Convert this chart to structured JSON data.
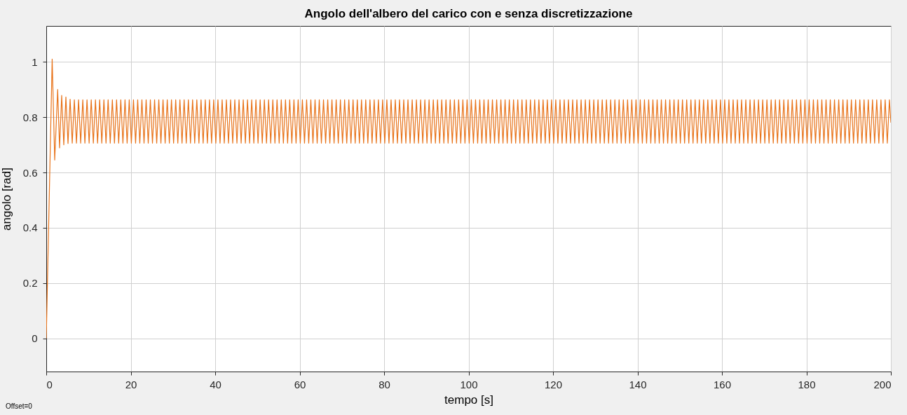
{
  "chart_data": {
    "type": "line",
    "title": "Angolo dell'albero del carico con e senza discretizzazione",
    "xlabel": "tempo [s]",
    "ylabel": "angolo [rad]",
    "annotations": [
      "Offset=0"
    ],
    "xlim": [
      0,
      200
    ],
    "xticks": [
      0,
      20,
      40,
      60,
      80,
      100,
      120,
      140,
      160,
      180,
      200
    ],
    "ylim": [
      -0.12,
      1.13
    ],
    "yticks": [
      0,
      0.2,
      0.4,
      0.6,
      0.8,
      1
    ],
    "grid": true,
    "line_style": "solid",
    "marker": "none",
    "series": [
      {
        "color": "#e8731a",
        "x": [
          0,
          1.4,
          2.0,
          2.7,
          3.15,
          3.65,
          4.15,
          4.65,
          5.15,
          5.65,
          6.15,
          6.65,
          7.15,
          7.65,
          8.15,
          8.65,
          9.15,
          9.65,
          10.15,
          10.65,
          11.15,
          11.65,
          12.15,
          12.65,
          13.15,
          13.65,
          14.15,
          14.65,
          15.15,
          15.65,
          16.15,
          16.65,
          17.15,
          17.65,
          18.15,
          18.65,
          19.15,
          19.65,
          20.15,
          20.65,
          21.15,
          21.65,
          22.15,
          22.65,
          23.15,
          23.65,
          24.15,
          24.65,
          25.15,
          25.65,
          26.15,
          26.65,
          27.15,
          27.65,
          28.15,
          28.65,
          29.15,
          29.65,
          30.15,
          30.65,
          31.15,
          31.65,
          32.15,
          32.65,
          33.15,
          33.65,
          34.15,
          34.65,
          35.15,
          35.65,
          36.15,
          36.65,
          37.15,
          37.65,
          38.15,
          38.65,
          39.15,
          39.65,
          40.15,
          40.65,
          41.15,
          41.65,
          42.15,
          42.65,
          43.15,
          43.65,
          44.15,
          44.65,
          45.15,
          45.65,
          46.15,
          46.65,
          47.15,
          47.65,
          48.15,
          48.65,
          49.15,
          49.65,
          50.15,
          50.65,
          51.15,
          51.65,
          52.15,
          52.65,
          53.15,
          53.65,
          54.15,
          54.65,
          55.15,
          55.65,
          56.15,
          56.65,
          57.15,
          57.65,
          58.15,
          58.65,
          59.15,
          59.65,
          60.15,
          60.65,
          61.15,
          61.65,
          62.15,
          62.65,
          63.15,
          63.65,
          64.15,
          64.65,
          65.15,
          65.65,
          66.15,
          66.65,
          67.15,
          67.65,
          68.15,
          68.65,
          69.15,
          69.65,
          70.15,
          70.65,
          71.15,
          71.65,
          72.15,
          72.65,
          73.15,
          73.65,
          74.15,
          74.65,
          75.15,
          75.65,
          76.15,
          76.65,
          77.15,
          77.65,
          78.15,
          78.65,
          79.15,
          79.65,
          80.15,
          80.65,
          81.15,
          81.65,
          82.15,
          82.65,
          83.15,
          83.65,
          84.15,
          84.65,
          85.15,
          85.65,
          86.15,
          86.65,
          87.15,
          87.65,
          88.15,
          88.65,
          89.15,
          89.65,
          90.15,
          90.65,
          91.15,
          91.65,
          92.15,
          92.65,
          93.15,
          93.65,
          94.15,
          94.65,
          95.15,
          95.65,
          96.15,
          96.65,
          97.15,
          97.65,
          98.15,
          98.65,
          99.15,
          99.65,
          100.15,
          100.65,
          101.15,
          101.65,
          102.15,
          102.65,
          103.15,
          103.65,
          104.15,
          104.65,
          105.15,
          105.65,
          106.15,
          106.65,
          107.15,
          107.65,
          108.15,
          108.65,
          109.15,
          109.65,
          110.15,
          110.65,
          111.15,
          111.65,
          112.15,
          112.65,
          113.15,
          113.65,
          114.15,
          114.65,
          115.15,
          115.65,
          116.15,
          116.65,
          117.15,
          117.65,
          118.15,
          118.65,
          119.15,
          119.65,
          120.15,
          120.65,
          121.15,
          121.65,
          122.15,
          122.65,
          123.15,
          123.65,
          124.15,
          124.65,
          125.15,
          125.65,
          126.15,
          126.65,
          127.15,
          127.65,
          128.15,
          128.65,
          129.15,
          129.65,
          130.15,
          130.65,
          131.15,
          131.65,
          132.15,
          132.65,
          133.15,
          133.65,
          134.15,
          134.65,
          135.15,
          135.65,
          136.15,
          136.65,
          137.15,
          137.65,
          138.15,
          138.65,
          139.15,
          139.65,
          140.15,
          140.65,
          141.15,
          141.65,
          142.15,
          142.65,
          143.15,
          143.65,
          144.15,
          144.65,
          145.15,
          145.65,
          146.15,
          146.65,
          147.15,
          147.65,
          148.15,
          148.65,
          149.15,
          149.65,
          150.15,
          150.65,
          151.15,
          151.65,
          152.15,
          152.65,
          153.15,
          153.65,
          154.15,
          154.65,
          155.15,
          155.65,
          156.15,
          156.65,
          157.15,
          157.65,
          158.15,
          158.65,
          159.15,
          159.65,
          160.15,
          160.65,
          161.15,
          161.65,
          162.15,
          162.65,
          163.15,
          163.65,
          164.15,
          164.65,
          165.15,
          165.65,
          166.15,
          166.65,
          167.15,
          167.65,
          168.15,
          168.65,
          169.15,
          169.65,
          170.15,
          170.65,
          171.15,
          171.65,
          172.15,
          172.65,
          173.15,
          173.65,
          174.15,
          174.65,
          175.15,
          175.65,
          176.15,
          176.65,
          177.15,
          177.65,
          178.15,
          178.65,
          179.15,
          179.65,
          180.15,
          180.65,
          181.15,
          181.65,
          182.15,
          182.65,
          183.15,
          183.65,
          184.15,
          184.65,
          185.15,
          185.65,
          186.15,
          186.65,
          187.15,
          187.65,
          188.15,
          188.65,
          189.15,
          189.65,
          190.15,
          190.65,
          191.15,
          191.65,
          192.15,
          192.65,
          193.15,
          193.65,
          194.15,
          194.65,
          195.15,
          195.65,
          196.15,
          196.65,
          197.15,
          197.65,
          198.15,
          198.65,
          199.15,
          199.65,
          200
        ],
        "values": [
          0,
          1.01,
          0.645,
          0.9,
          0.689,
          0.879,
          0.7,
          0.873,
          0.705,
          0.865,
          0.706,
          0.863,
          0.706,
          0.863,
          0.706,
          0.863,
          0.706,
          0.863,
          0.706,
          0.863,
          0.706,
          0.863,
          0.706,
          0.863,
          0.706,
          0.863,
          0.706,
          0.863,
          0.706,
          0.863,
          0.706,
          0.863,
          0.706,
          0.863,
          0.706,
          0.863,
          0.706,
          0.863,
          0.706,
          0.863,
          0.706,
          0.863,
          0.706,
          0.863,
          0.706,
          0.863,
          0.706,
          0.863,
          0.706,
          0.863,
          0.706,
          0.863,
          0.706,
          0.863,
          0.706,
          0.863,
          0.706,
          0.863,
          0.706,
          0.863,
          0.706,
          0.863,
          0.706,
          0.863,
          0.706,
          0.863,
          0.706,
          0.863,
          0.706,
          0.863,
          0.706,
          0.863,
          0.706,
          0.863,
          0.706,
          0.863,
          0.706,
          0.863,
          0.706,
          0.863,
          0.706,
          0.863,
          0.706,
          0.863,
          0.706,
          0.863,
          0.706,
          0.863,
          0.706,
          0.863,
          0.706,
          0.863,
          0.706,
          0.863,
          0.706,
          0.863,
          0.706,
          0.863,
          0.706,
          0.863,
          0.706,
          0.863,
          0.706,
          0.863,
          0.706,
          0.863,
          0.706,
          0.863,
          0.706,
          0.863,
          0.706,
          0.863,
          0.706,
          0.863,
          0.706,
          0.863,
          0.706,
          0.863,
          0.706,
          0.863,
          0.706,
          0.863,
          0.706,
          0.863,
          0.706,
          0.863,
          0.706,
          0.863,
          0.706,
          0.863,
          0.706,
          0.863,
          0.706,
          0.863,
          0.706,
          0.863,
          0.706,
          0.863,
          0.706,
          0.863,
          0.706,
          0.863,
          0.706,
          0.863,
          0.706,
          0.863,
          0.706,
          0.863,
          0.706,
          0.863,
          0.706,
          0.863,
          0.706,
          0.863,
          0.706,
          0.863,
          0.706,
          0.863,
          0.706,
          0.863,
          0.706,
          0.863,
          0.706,
          0.863,
          0.706,
          0.863,
          0.706,
          0.863,
          0.706,
          0.863,
          0.706,
          0.863,
          0.706,
          0.863,
          0.706,
          0.863,
          0.706,
          0.863,
          0.706,
          0.863,
          0.706,
          0.863,
          0.706,
          0.863,
          0.706,
          0.863,
          0.706,
          0.863,
          0.706,
          0.863,
          0.706,
          0.863,
          0.706,
          0.863,
          0.706,
          0.863,
          0.706,
          0.863,
          0.706,
          0.863,
          0.706,
          0.863,
          0.706,
          0.863,
          0.706,
          0.863,
          0.706,
          0.863,
          0.706,
          0.863,
          0.706,
          0.863,
          0.706,
          0.863,
          0.706,
          0.863,
          0.706,
          0.863,
          0.706,
          0.863,
          0.706,
          0.863,
          0.706,
          0.863,
          0.706,
          0.863,
          0.706,
          0.863,
          0.706,
          0.863,
          0.706,
          0.863,
          0.706,
          0.863,
          0.706,
          0.863,
          0.706,
          0.863,
          0.706,
          0.863,
          0.706,
          0.863,
          0.706,
          0.863,
          0.706,
          0.863,
          0.706,
          0.863,
          0.706,
          0.863,
          0.706,
          0.863,
          0.706,
          0.863,
          0.706,
          0.863,
          0.706,
          0.863,
          0.706,
          0.863,
          0.706,
          0.863,
          0.706,
          0.863,
          0.706,
          0.863,
          0.706,
          0.863,
          0.706,
          0.863,
          0.706,
          0.863,
          0.706,
          0.863,
          0.706,
          0.863,
          0.706,
          0.863,
          0.706,
          0.863,
          0.706,
          0.863,
          0.706,
          0.863,
          0.706,
          0.863,
          0.706,
          0.863,
          0.706,
          0.863,
          0.706,
          0.863,
          0.706,
          0.863,
          0.706,
          0.863,
          0.706,
          0.863,
          0.706,
          0.863,
          0.706,
          0.863,
          0.706,
          0.863,
          0.706,
          0.863,
          0.706,
          0.863,
          0.706,
          0.863,
          0.706,
          0.863,
          0.706,
          0.863,
          0.706,
          0.863,
          0.706,
          0.863,
          0.706,
          0.863,
          0.706,
          0.863,
          0.706,
          0.863,
          0.706,
          0.863,
          0.706,
          0.863,
          0.706,
          0.863,
          0.706,
          0.863,
          0.706,
          0.863,
          0.706,
          0.863,
          0.706,
          0.863,
          0.706,
          0.863,
          0.706,
          0.863,
          0.706,
          0.863,
          0.706,
          0.863,
          0.706,
          0.863,
          0.706,
          0.863,
          0.706,
          0.863,
          0.706,
          0.863,
          0.706,
          0.863,
          0.706,
          0.863,
          0.706,
          0.863,
          0.706,
          0.863,
          0.706,
          0.863,
          0.706,
          0.863,
          0.706,
          0.863,
          0.706,
          0.863,
          0.706,
          0.863,
          0.706,
          0.863,
          0.706,
          0.863,
          0.706,
          0.863,
          0.706,
          0.863,
          0.706,
          0.863,
          0.706,
          0.863,
          0.706,
          0.863,
          0.706,
          0.863,
          0.706,
          0.863,
          0.706,
          0.863,
          0.706,
          0.863,
          0.706,
          0.863,
          0.706,
          0.863,
          0.78
        ]
      }
    ]
  }
}
